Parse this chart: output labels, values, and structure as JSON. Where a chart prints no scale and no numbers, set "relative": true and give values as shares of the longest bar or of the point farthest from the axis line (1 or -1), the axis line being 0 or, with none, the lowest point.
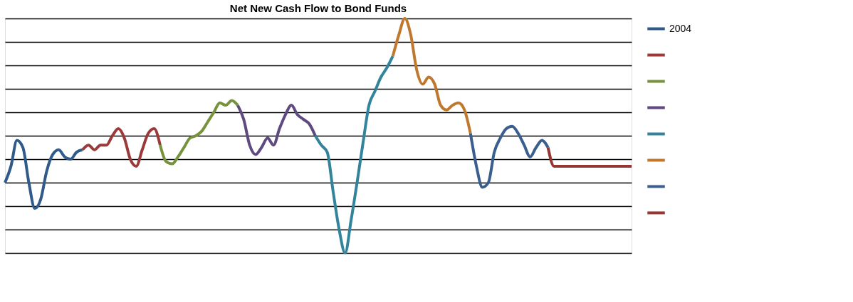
{
  "chart_data": {
    "type": "line",
    "title": "Net New Cash Flow to Bond Funds",
    "relative": true,
    "grid": "y",
    "legend": "right",
    "marker": "none",
    "line_style": "solid",
    "tick_labels": false,
    "categories": [
      null,
      null,
      null,
      null,
      null,
      null,
      null,
      null,
      null,
      null,
      null,
      null,
      null,
      null,
      null,
      null,
      null,
      null,
      null,
      null,
      null,
      null,
      null,
      null,
      null,
      null,
      null,
      null,
      null,
      null,
      null,
      null,
      null,
      null,
      null,
      null,
      null,
      null,
      null,
      null,
      null,
      null,
      null,
      null,
      null,
      null,
      null,
      null,
      null,
      null,
      null,
      null,
      null,
      null,
      null,
      null,
      null,
      null,
      null,
      null,
      null,
      null,
      null,
      null,
      null,
      null,
      null,
      null,
      null,
      null,
      null,
      null,
      null,
      null,
      null,
      null,
      null,
      null,
      null,
      null,
      null,
      null,
      null,
      null,
      null,
      null,
      null,
      null,
      null,
      null,
      null,
      null,
      null,
      null,
      null,
      null,
      null,
      null,
      null,
      null,
      null,
      null,
      null,
      null,
      null,
      null
    ],
    "series": [
      {
        "name": "2004",
        "color": "#2f5a8a",
        "values": [
          0.3,
          0.37,
          0.48,
          0.45,
          0.3,
          0.19,
          0.23,
          0.35,
          0.42,
          0.44,
          0.41,
          0.4,
          0.43,
          0.44,
          null,
          null,
          null,
          null,
          null,
          null,
          null,
          null,
          null,
          null,
          null,
          null,
          null,
          null,
          null,
          null,
          null,
          null,
          null,
          null,
          null,
          null,
          null,
          null,
          null,
          null,
          null,
          null,
          null,
          null,
          null,
          null,
          null,
          null,
          null,
          null,
          null,
          null,
          null,
          null,
          null,
          null,
          null,
          null,
          null,
          null,
          null,
          null,
          null,
          null,
          null,
          null,
          null,
          null,
          null,
          null,
          null,
          null,
          null,
          null,
          null,
          null,
          null,
          null,
          null,
          null,
          null,
          null,
          null,
          null,
          null,
          null,
          null,
          null,
          null,
          null,
          null,
          null,
          null,
          null,
          null,
          null,
          null,
          null,
          null,
          null,
          null,
          null,
          null,
          null,
          null,
          null
        ]
      },
      {
        "color": "#9b3a3a",
        "values": [
          null,
          null,
          null,
          null,
          null,
          null,
          null,
          null,
          null,
          null,
          null,
          null,
          null,
          0.44,
          0.46,
          0.44,
          0.46,
          0.46,
          0.5,
          0.53,
          0.49,
          0.4,
          0.37,
          0.44,
          0.51,
          0.53,
          0.46,
          null,
          null,
          null,
          null,
          null,
          null,
          null,
          null,
          null,
          null,
          null,
          null,
          null,
          null,
          null,
          null,
          null,
          null,
          null,
          null,
          null,
          null,
          null,
          null,
          null,
          null,
          null,
          null,
          null,
          null,
          null,
          null,
          null,
          null,
          null,
          null,
          null,
          null,
          null,
          null,
          null,
          null,
          null,
          null,
          null,
          null,
          null,
          null,
          null,
          null,
          null,
          null,
          null,
          null,
          null,
          null,
          null,
          null,
          null,
          null,
          null,
          null,
          null,
          null,
          null,
          null,
          null,
          null,
          null,
          null,
          null,
          null,
          null,
          null,
          null,
          null,
          null,
          null,
          null
        ]
      },
      {
        "color": "#76923c",
        "values": [
          null,
          null,
          null,
          null,
          null,
          null,
          null,
          null,
          null,
          null,
          null,
          null,
          null,
          null,
          null,
          null,
          null,
          null,
          null,
          null,
          null,
          null,
          null,
          null,
          null,
          null,
          0.46,
          0.39,
          0.38,
          0.41,
          0.45,
          0.49,
          0.5,
          0.52,
          0.56,
          0.6,
          0.64,
          0.63,
          0.65,
          0.63,
          null,
          null,
          null,
          null,
          null,
          null,
          null,
          null,
          null,
          null,
          null,
          null,
          null,
          null,
          null,
          null,
          null,
          null,
          null,
          null,
          null,
          null,
          null,
          null,
          null,
          null,
          null,
          null,
          null,
          null,
          null,
          null,
          null,
          null,
          null,
          null,
          null,
          null,
          null,
          null,
          null,
          null,
          null,
          null,
          null,
          null,
          null,
          null,
          null,
          null,
          null,
          null,
          null,
          null,
          null,
          null,
          null,
          null,
          null,
          null,
          null,
          null,
          null,
          null,
          null,
          null
        ]
      },
      {
        "color": "#5f4a80",
        "values": [
          null,
          null,
          null,
          null,
          null,
          null,
          null,
          null,
          null,
          null,
          null,
          null,
          null,
          null,
          null,
          null,
          null,
          null,
          null,
          null,
          null,
          null,
          null,
          null,
          null,
          null,
          null,
          null,
          null,
          null,
          null,
          null,
          null,
          null,
          null,
          null,
          null,
          null,
          null,
          0.63,
          0.57,
          0.46,
          0.42,
          0.45,
          0.49,
          0.46,
          0.53,
          0.59,
          0.63,
          0.59,
          0.57,
          0.55,
          0.5,
          null,
          null,
          null,
          null,
          null,
          null,
          null,
          null,
          null,
          null,
          null,
          null,
          null,
          null,
          null,
          null,
          null,
          null,
          null,
          null,
          null,
          null,
          null,
          null,
          null,
          null,
          null,
          null,
          null,
          null,
          null,
          null,
          null,
          null,
          null,
          null,
          null,
          null,
          null,
          null,
          null,
          null,
          null,
          null,
          null,
          null,
          null,
          null,
          null,
          null,
          null,
          null,
          null
        ]
      },
      {
        "color": "#31849b",
        "values": [
          null,
          null,
          null,
          null,
          null,
          null,
          null,
          null,
          null,
          null,
          null,
          null,
          null,
          null,
          null,
          null,
          null,
          null,
          null,
          null,
          null,
          null,
          null,
          null,
          null,
          null,
          null,
          null,
          null,
          null,
          null,
          null,
          null,
          null,
          null,
          null,
          null,
          null,
          null,
          null,
          null,
          null,
          null,
          null,
          null,
          null,
          null,
          null,
          null,
          null,
          null,
          null,
          0.5,
          0.46,
          0.43,
          0.26,
          0.1,
          0.0,
          0.14,
          0.3,
          0.47,
          0.63,
          0.69,
          0.75,
          0.79,
          0.84,
          null,
          null,
          null,
          null,
          null,
          null,
          null,
          null,
          null,
          null,
          null,
          null,
          null,
          null,
          null,
          null,
          null,
          null,
          null,
          null,
          null,
          null,
          null,
          null,
          null,
          null,
          null,
          null,
          null,
          null,
          null,
          null,
          null,
          null,
          null,
          null,
          null,
          null,
          null,
          null
        ]
      },
      {
        "color": "#c0782e",
        "values": [
          null,
          null,
          null,
          null,
          null,
          null,
          null,
          null,
          null,
          null,
          null,
          null,
          null,
          null,
          null,
          null,
          null,
          null,
          null,
          null,
          null,
          null,
          null,
          null,
          null,
          null,
          null,
          null,
          null,
          null,
          null,
          null,
          null,
          null,
          null,
          null,
          null,
          null,
          null,
          null,
          null,
          null,
          null,
          null,
          null,
          null,
          null,
          null,
          null,
          null,
          null,
          null,
          null,
          null,
          null,
          null,
          null,
          null,
          null,
          null,
          null,
          null,
          null,
          null,
          null,
          0.84,
          0.93,
          1,
          0.93,
          0.78,
          0.72,
          0.75,
          0.72,
          0.63,
          0.61,
          0.63,
          0.64,
          0.61,
          0.51,
          null,
          null,
          null,
          null,
          null,
          null,
          null,
          null,
          null,
          null,
          null,
          null,
          null,
          null,
          null,
          null,
          null,
          null,
          null,
          null,
          null,
          null,
          null,
          null,
          null,
          null,
          null
        ]
      },
      {
        "color": "#3a5f8f",
        "values": [
          null,
          null,
          null,
          null,
          null,
          null,
          null,
          null,
          null,
          null,
          null,
          null,
          null,
          null,
          null,
          null,
          null,
          null,
          null,
          null,
          null,
          null,
          null,
          null,
          null,
          null,
          null,
          null,
          null,
          null,
          null,
          null,
          null,
          null,
          null,
          null,
          null,
          null,
          null,
          null,
          null,
          null,
          null,
          null,
          null,
          null,
          null,
          null,
          null,
          null,
          null,
          null,
          null,
          null,
          null,
          null,
          null,
          null,
          null,
          null,
          null,
          null,
          null,
          null,
          null,
          null,
          null,
          null,
          null,
          null,
          null,
          null,
          null,
          null,
          null,
          null,
          null,
          null,
          0.51,
          0.37,
          0.28,
          0.3,
          0.43,
          0.49,
          0.53,
          0.54,
          0.51,
          0.46,
          0.41,
          0.45,
          0.48,
          0.45,
          null,
          null,
          null,
          null,
          null,
          null,
          null,
          null,
          null,
          null,
          null,
          null,
          null,
          null
        ]
      },
      {
        "color": "#943634",
        "values": [
          null,
          null,
          null,
          null,
          null,
          null,
          null,
          null,
          null,
          null,
          null,
          null,
          null,
          null,
          null,
          null,
          null,
          null,
          null,
          null,
          null,
          null,
          null,
          null,
          null,
          null,
          null,
          null,
          null,
          null,
          null,
          null,
          null,
          null,
          null,
          null,
          null,
          null,
          null,
          null,
          null,
          null,
          null,
          null,
          null,
          null,
          null,
          null,
          null,
          null,
          null,
          null,
          null,
          null,
          null,
          null,
          null,
          null,
          null,
          null,
          null,
          null,
          null,
          null,
          null,
          null,
          null,
          null,
          null,
          null,
          null,
          null,
          null,
          null,
          null,
          null,
          null,
          null,
          null,
          null,
          null,
          null,
          null,
          null,
          null,
          null,
          null,
          null,
          null,
          null,
          null,
          0.45,
          0.37,
          0.37,
          0.37,
          0.37,
          0.37,
          0.37,
          0.37,
          0.37,
          0.37,
          0.37,
          0.37,
          0.37,
          0.37,
          0.37
        ]
      }
    ]
  }
}
